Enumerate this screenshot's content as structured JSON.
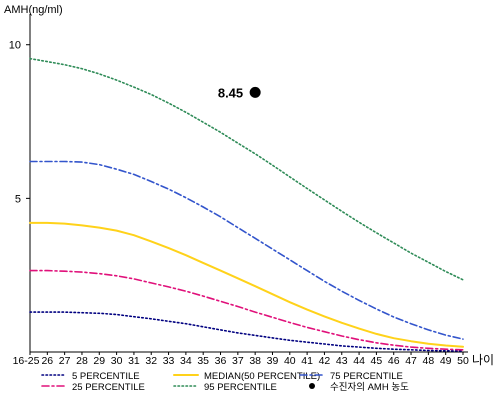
{
  "chart_data": {
    "type": "line",
    "ylabel": "AMH(ng/ml)",
    "xlabel": "나이",
    "ylim": [
      0,
      11
    ],
    "y_ticks": [
      {
        "value": 5,
        "label": "5"
      },
      {
        "value": 10,
        "label": "10"
      }
    ],
    "categories": [
      "16-25",
      "26",
      "27",
      "28",
      "29",
      "30",
      "31",
      "32",
      "33",
      "34",
      "35",
      "36",
      "37",
      "38",
      "39",
      "40",
      "41",
      "42",
      "43",
      "44",
      "45",
      "46",
      "47",
      "48",
      "49",
      "50"
    ],
    "series": [
      {
        "name": "5 PERCENTILE",
        "color": "#000080",
        "dash": "dot",
        "values": [
          1.3,
          1.3,
          1.3,
          1.28,
          1.26,
          1.22,
          1.15,
          1.08,
          1.0,
          0.92,
          0.82,
          0.72,
          0.62,
          0.54,
          0.46,
          0.38,
          0.32,
          0.26,
          0.2,
          0.16,
          0.12,
          0.09,
          0.07,
          0.05,
          0.04,
          0.03
        ]
      },
      {
        "name": "25 PERCENTILE",
        "color": "#e0107a",
        "dash": "dashdot",
        "values": [
          2.65,
          2.65,
          2.63,
          2.6,
          2.55,
          2.48,
          2.38,
          2.25,
          2.12,
          1.98,
          1.82,
          1.65,
          1.48,
          1.3,
          1.13,
          0.96,
          0.8,
          0.66,
          0.52,
          0.4,
          0.3,
          0.22,
          0.16,
          0.12,
          0.09,
          0.07
        ]
      },
      {
        "name": "MEDIAN(50 PERCENTILE)",
        "color": "#ffd21a",
        "dash": "solid",
        "values": [
          4.2,
          4.2,
          4.18,
          4.12,
          4.05,
          3.95,
          3.8,
          3.6,
          3.38,
          3.15,
          2.9,
          2.65,
          2.4,
          2.14,
          1.88,
          1.62,
          1.38,
          1.16,
          0.95,
          0.76,
          0.59,
          0.45,
          0.35,
          0.27,
          0.21,
          0.17
        ]
      },
      {
        "name": "75 PERCENTILE",
        "color": "#3355cc",
        "dash": "dashdot",
        "values": [
          6.2,
          6.2,
          6.2,
          6.18,
          6.1,
          5.95,
          5.78,
          5.55,
          5.3,
          5.02,
          4.72,
          4.4,
          4.05,
          3.7,
          3.35,
          3.0,
          2.65,
          2.3,
          1.98,
          1.68,
          1.4,
          1.14,
          0.92,
          0.72,
          0.55,
          0.42
        ]
      },
      {
        "name": "95 PERCENTILE",
        "color": "#2e8b57",
        "dash": "dot",
        "values": [
          9.55,
          9.45,
          9.35,
          9.22,
          9.05,
          8.85,
          8.62,
          8.38,
          8.1,
          7.8,
          7.48,
          7.15,
          6.8,
          6.45,
          6.08,
          5.7,
          5.32,
          4.95,
          4.58,
          4.22,
          3.88,
          3.55,
          3.22,
          2.92,
          2.62,
          2.35
        ]
      }
    ],
    "marker": {
      "category": "38",
      "value": 8.45,
      "label": "8.45",
      "legend_label": "수진자의 AMH 농도",
      "color": "#000000"
    },
    "legend": {
      "position": "bottom",
      "columns": 3
    }
  }
}
